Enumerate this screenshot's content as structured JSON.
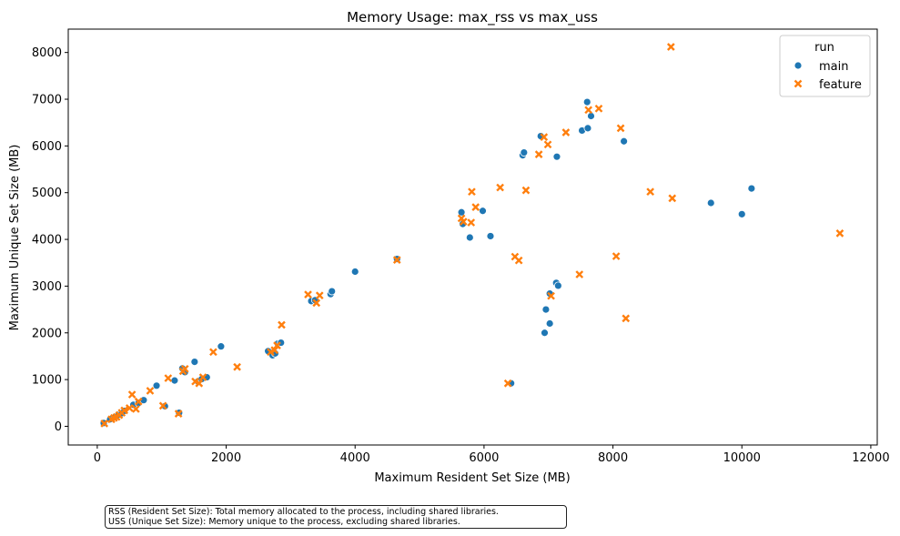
{
  "chart_data": {
    "type": "scatter",
    "title": "Memory Usage: max_rss vs max_uss",
    "xlabel": "Maximum Resident Set Size (MB)",
    "ylabel": "Maximum Unique Set Size (MB)",
    "xlim": [
      -450,
      12100
    ],
    "ylim": [
      -400,
      8500
    ],
    "xticks": [
      0,
      2000,
      4000,
      6000,
      8000,
      10000,
      12000
    ],
    "yticks": [
      0,
      1000,
      2000,
      3000,
      4000,
      5000,
      6000,
      7000,
      8000
    ],
    "grid": false,
    "legend": {
      "title": "run",
      "placement": "top-right",
      "entries": [
        "main",
        "feature"
      ]
    },
    "colors": {
      "main": "#1f77b4",
      "feature": "#ff7f0e"
    },
    "markers": {
      "main": "circle",
      "feature": "x"
    },
    "series": [
      {
        "name": "main",
        "points": [
          [
            100,
            70
          ],
          [
            200,
            150
          ],
          [
            280,
            210
          ],
          [
            330,
            250
          ],
          [
            380,
            280
          ],
          [
            420,
            330
          ],
          [
            560,
            460
          ],
          [
            640,
            500
          ],
          [
            720,
            560
          ],
          [
            920,
            870
          ],
          [
            1050,
            430
          ],
          [
            1200,
            980
          ],
          [
            1270,
            290
          ],
          [
            1320,
            1240
          ],
          [
            1360,
            1160
          ],
          [
            1510,
            1380
          ],
          [
            1560,
            960
          ],
          [
            1620,
            1010
          ],
          [
            1700,
            1050
          ],
          [
            1920,
            1710
          ],
          [
            2650,
            1610
          ],
          [
            2720,
            1520
          ],
          [
            2760,
            1560
          ],
          [
            2800,
            1770
          ],
          [
            2850,
            1790
          ],
          [
            3320,
            2680
          ],
          [
            3380,
            2700
          ],
          [
            3620,
            2830
          ],
          [
            3640,
            2890
          ],
          [
            4000,
            3310
          ],
          [
            4650,
            3580
          ],
          [
            5650,
            4580
          ],
          [
            5670,
            4330
          ],
          [
            5780,
            4040
          ],
          [
            5980,
            4610
          ],
          [
            6100,
            4070
          ],
          [
            6420,
            920
          ],
          [
            6600,
            5800
          ],
          [
            6620,
            5860
          ],
          [
            6880,
            6210
          ],
          [
            6940,
            2000
          ],
          [
            6960,
            2500
          ],
          [
            7020,
            2200
          ],
          [
            7020,
            2840
          ],
          [
            7120,
            3070
          ],
          [
            7130,
            5770
          ],
          [
            7150,
            3010
          ],
          [
            7520,
            6330
          ],
          [
            7600,
            6940
          ],
          [
            7610,
            6380
          ],
          [
            7660,
            6640
          ],
          [
            8170,
            6100
          ],
          [
            9520,
            4780
          ],
          [
            10000,
            4540
          ],
          [
            10150,
            5090
          ]
        ]
      },
      {
        "name": "feature",
        "points": [
          [
            110,
            60
          ],
          [
            220,
            150
          ],
          [
            260,
            180
          ],
          [
            300,
            200
          ],
          [
            340,
            240
          ],
          [
            380,
            290
          ],
          [
            420,
            340
          ],
          [
            500,
            390
          ],
          [
            540,
            680
          ],
          [
            600,
            370
          ],
          [
            640,
            530
          ],
          [
            820,
            760
          ],
          [
            1020,
            440
          ],
          [
            1100,
            1030
          ],
          [
            1260,
            270
          ],
          [
            1330,
            1180
          ],
          [
            1360,
            1230
          ],
          [
            1520,
            960
          ],
          [
            1580,
            920
          ],
          [
            1640,
            1050
          ],
          [
            1800,
            1590
          ],
          [
            2170,
            1270
          ],
          [
            2690,
            1590
          ],
          [
            2750,
            1630
          ],
          [
            2790,
            1730
          ],
          [
            2860,
            2170
          ],
          [
            3270,
            2820
          ],
          [
            3400,
            2640
          ],
          [
            3450,
            2800
          ],
          [
            4650,
            3560
          ],
          [
            5650,
            4450
          ],
          [
            5680,
            4380
          ],
          [
            5800,
            4360
          ],
          [
            5810,
            5020
          ],
          [
            5870,
            4690
          ],
          [
            6250,
            5110
          ],
          [
            6370,
            920
          ],
          [
            6480,
            3630
          ],
          [
            6540,
            3550
          ],
          [
            6650,
            5050
          ],
          [
            6850,
            5820
          ],
          [
            6930,
            6190
          ],
          [
            6990,
            6030
          ],
          [
            7040,
            2790
          ],
          [
            7270,
            6290
          ],
          [
            7480,
            3250
          ],
          [
            7620,
            6770
          ],
          [
            7780,
            6800
          ],
          [
            8050,
            3640
          ],
          [
            8120,
            6380
          ],
          [
            8200,
            2310
          ],
          [
            8580,
            5020
          ],
          [
            8900,
            8120
          ],
          [
            8920,
            4880
          ],
          [
            11520,
            4130
          ]
        ]
      }
    ]
  },
  "notes": {
    "line1": "RSS (Resident Set Size): Total memory allocated to the process, including shared libraries.",
    "line2": "USS (Unique Set Size): Memory unique to the process, excluding shared libraries."
  }
}
